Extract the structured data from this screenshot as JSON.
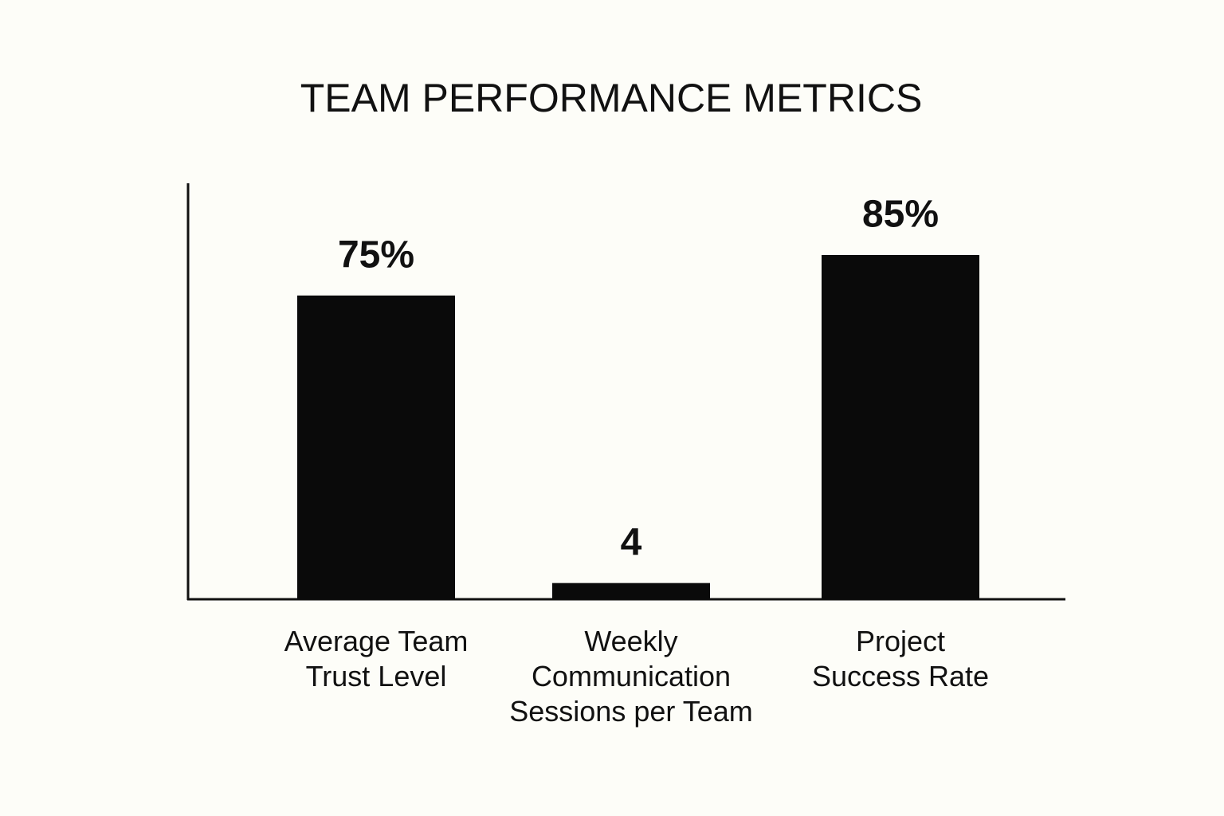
{
  "chart_data": {
    "type": "bar",
    "title": "TEAM PERFORMANCE METRICS",
    "categories": [
      "Average Team Trust Level",
      "Weekly Communication Sessions per Team",
      "Project Success Rate"
    ],
    "values": [
      75,
      4,
      85
    ],
    "value_labels": [
      "75%",
      "4",
      "85%"
    ],
    "color": "#0a0a0a"
  }
}
